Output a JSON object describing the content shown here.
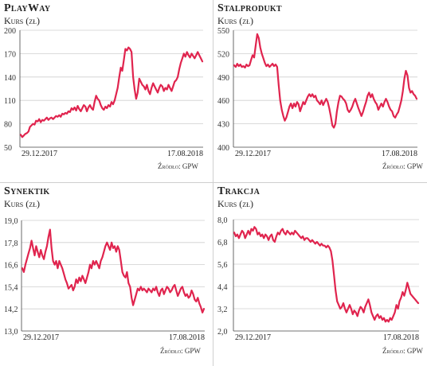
{
  "accent_color": "#e0244e",
  "chart_data": [
    {
      "type": "line",
      "title": "PlayWay",
      "ylabel": "Kurs (zł)",
      "source": "Źródło: GPW",
      "x_start_label": "29.12.2017",
      "x_end_label": "17.08.2018",
      "ylim": [
        50,
        200
      ],
      "yticks": [
        "200",
        "170",
        "140",
        "110",
        "80",
        "50"
      ],
      "values": [
        66,
        63,
        65,
        67,
        68,
        70,
        76,
        78,
        80,
        79,
        84,
        83,
        86,
        82,
        85,
        84,
        86,
        88,
        85,
        87,
        88,
        86,
        88,
        90,
        89,
        91,
        89,
        93,
        92,
        94,
        93,
        96,
        95,
        100,
        98,
        101,
        97,
        103,
        99,
        96,
        100,
        104,
        102,
        96,
        101,
        104,
        100,
        98,
        108,
        116,
        112,
        110,
        104,
        100,
        98,
        102,
        100,
        104,
        102,
        108,
        105,
        110,
        118,
        126,
        140,
        152,
        148,
        162,
        176,
        174,
        178,
        176,
        172,
        140,
        124,
        112,
        120,
        138,
        134,
        130,
        128,
        124,
        130,
        122,
        118,
        126,
        132,
        128,
        124,
        120,
        126,
        130,
        128,
        122,
        126,
        124,
        130,
        126,
        122,
        128,
        134,
        136,
        140,
        150,
        158,
        164,
        170,
        166,
        172,
        168,
        165,
        170,
        167,
        164,
        168,
        172,
        168,
        164,
        160
      ]
    },
    {
      "type": "line",
      "title": "Stalprodukt",
      "ylabel": "Kurs (zł)",
      "source": "Źródło: GPW",
      "x_start_label": "29.12.2017",
      "x_end_label": "17.08.2018",
      "ylim": [
        400,
        550
      ],
      "yticks": [
        "550",
        "520",
        "490",
        "460",
        "430",
        "400"
      ],
      "values": [
        505,
        503,
        507,
        504,
        506,
        503,
        504,
        502,
        506,
        504,
        505,
        512,
        518,
        515,
        530,
        545,
        540,
        528,
        520,
        514,
        508,
        504,
        506,
        503,
        505,
        507,
        504,
        506,
        503,
        480,
        460,
        448,
        440,
        434,
        438,
        445,
        452,
        456,
        450,
        456,
        452,
        458,
        455,
        446,
        452,
        458,
        455,
        460,
        465,
        468,
        465,
        468,
        464,
        466,
        460,
        458,
        455,
        460,
        454,
        458,
        462,
        458,
        450,
        440,
        428,
        425,
        430,
        446,
        458,
        466,
        465,
        462,
        460,
        456,
        448,
        445,
        448,
        452,
        458,
        462,
        456,
        450,
        445,
        440,
        445,
        452,
        458,
        466,
        470,
        464,
        468,
        462,
        458,
        455,
        448,
        452,
        456,
        452,
        458,
        462,
        458,
        452,
        448,
        446,
        440,
        438,
        442,
        445,
        452,
        460,
        472,
        488,
        498,
        492,
        476,
        470,
        472,
        468,
        466,
        462
      ]
    },
    {
      "type": "line",
      "title": "Synektik",
      "ylabel": "Kurs (zł)",
      "source": "Źródło: GPW",
      "x_start_label": "29.12.2017",
      "x_end_label": "17.08.2018",
      "ylim": [
        13.0,
        19.0
      ],
      "yticks": [
        "19,0",
        "17,8",
        "16,6",
        "15,4",
        "14,2",
        "13,0"
      ],
      "values": [
        16.4,
        16.2,
        16.6,
        16.9,
        17.2,
        17.5,
        17.9,
        17.5,
        17.1,
        17.6,
        17.3,
        17.0,
        17.4,
        17.1,
        16.9,
        17.3,
        17.6,
        18.1,
        18.5,
        17.5,
        16.8,
        16.6,
        16.8,
        16.4,
        16.8,
        16.6,
        16.4,
        16.1,
        15.8,
        15.6,
        15.3,
        15.4,
        15.5,
        15.2,
        15.4,
        15.8,
        15.6,
        15.9,
        15.7,
        16.0,
        15.8,
        15.6,
        15.9,
        16.2,
        16.6,
        16.4,
        16.8,
        16.6,
        16.8,
        16.6,
        16.4,
        16.8,
        17.0,
        17.3,
        17.6,
        17.8,
        17.6,
        17.4,
        17.8,
        17.5,
        17.6,
        17.3,
        17.6,
        17.4,
        16.8,
        16.2,
        16.0,
        15.9,
        16.2,
        15.6,
        15.4,
        14.8,
        14.4,
        14.7,
        15.0,
        15.3,
        15.2,
        15.4,
        15.2,
        15.3,
        15.2,
        15.1,
        15.3,
        15.2,
        15.1,
        15.3,
        15.2,
        15.4,
        15.1,
        14.9,
        15.2,
        15.3,
        15.0,
        15.2,
        15.4,
        15.3,
        15.1,
        15.2,
        15.4,
        15.5,
        15.2,
        14.9,
        15.1,
        15.3,
        15.4,
        15.1,
        14.9,
        15.0,
        14.8,
        14.9,
        15.2,
        15.0,
        14.7,
        14.6,
        14.8,
        14.5,
        14.3,
        14.0,
        14.2
      ]
    },
    {
      "type": "line",
      "title": "Trakcja",
      "ylabel": "Kurs (zł)",
      "source": "Źródło: GPW",
      "x_start_label": "29.12.2017",
      "x_end_label": "17.08.2018",
      "ylim": [
        2.0,
        8.0
      ],
      "yticks": [
        "8,0",
        "6,8",
        "5,6",
        "4,4",
        "3,2",
        "2,0"
      ],
      "values": [
        7.3,
        7.1,
        7.2,
        7.0,
        7.2,
        7.4,
        7.3,
        7.0,
        7.2,
        7.4,
        7.2,
        7.5,
        7.4,
        7.6,
        7.5,
        7.2,
        7.3,
        7.1,
        7.2,
        7.0,
        7.2,
        7.1,
        6.9,
        7.1,
        7.2,
        6.9,
        6.8,
        7.1,
        7.3,
        7.2,
        7.4,
        7.5,
        7.3,
        7.2,
        7.4,
        7.3,
        7.2,
        7.3,
        7.2,
        7.4,
        7.3,
        7.2,
        7.1,
        7.0,
        7.1,
        6.9,
        7.0,
        7.0,
        6.9,
        6.8,
        6.9,
        6.8,
        6.7,
        6.8,
        6.7,
        6.6,
        6.7,
        6.6,
        6.6,
        6.5,
        6.6,
        6.5,
        6.3,
        5.8,
        5.0,
        4.2,
        3.6,
        3.4,
        3.2,
        3.3,
        3.5,
        3.2,
        3.0,
        3.2,
        3.4,
        3.2,
        2.9,
        3.1,
        3.0,
        2.8,
        3.1,
        3.3,
        3.2,
        3.0,
        3.3,
        3.5,
        3.7,
        3.4,
        3.0,
        2.8,
        2.6,
        2.8,
        2.9,
        2.7,
        2.8,
        2.6,
        2.7,
        2.5,
        2.6,
        2.5,
        2.7,
        2.6,
        2.8,
        3.0,
        3.4,
        3.2,
        3.6,
        3.8,
        4.1,
        3.9,
        4.2,
        4.6,
        4.3,
        4.0,
        3.9,
        3.8,
        3.7,
        3.6,
        3.5
      ]
    }
  ]
}
